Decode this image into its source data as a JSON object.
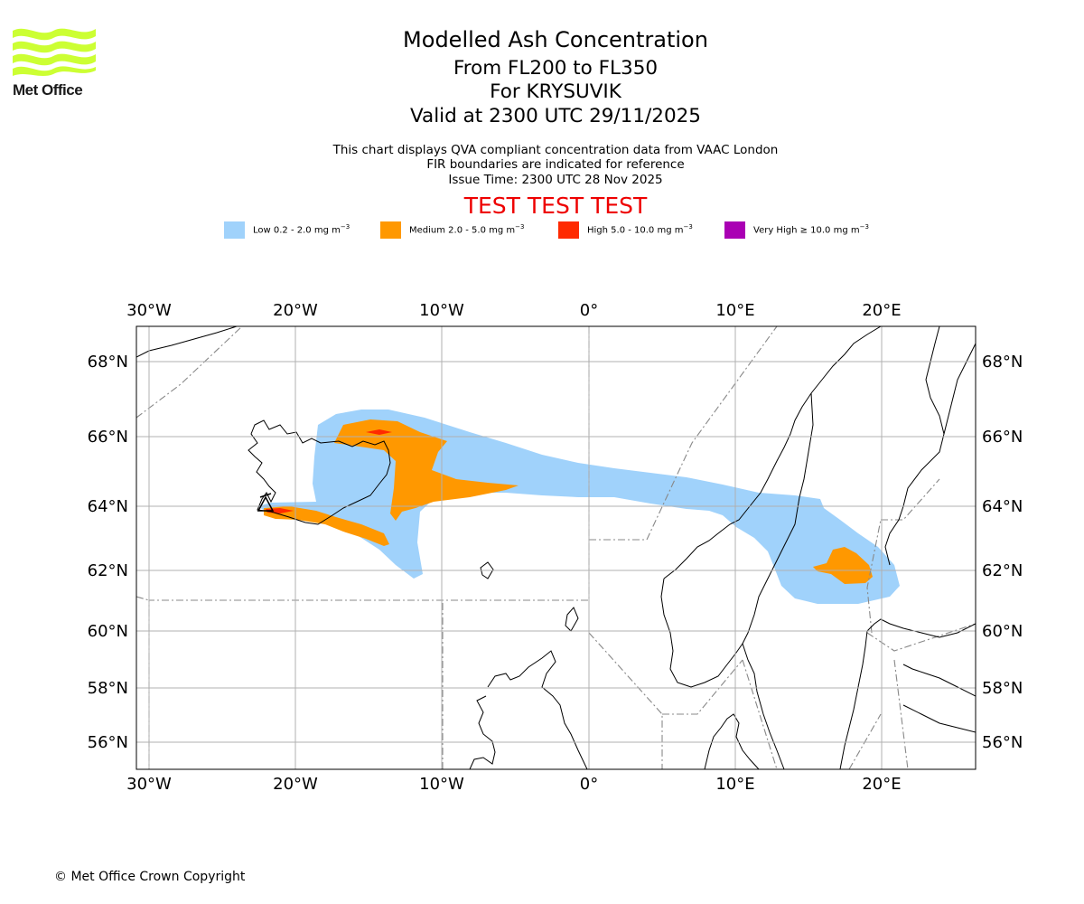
{
  "logo": {
    "text": "Met Office",
    "color": "#ccff33"
  },
  "header": {
    "title": "Modelled Ash Concentration",
    "flight_levels": "From FL200 to FL350",
    "volcano": "For KRYSUVIK",
    "valid": "Valid at 2300 UTC 29/11/2025",
    "note_1": "This chart displays QVA compliant concentration data from VAAC London",
    "note_2": "FIR boundaries are indicated for reference",
    "issue_time": "Issue Time: 2300 UTC 28 Nov 2025",
    "test_banner": "TEST TEST TEST",
    "test_color": "#ee0000"
  },
  "legend": [
    {
      "label": "Low 0.2 - 2.0 mg m",
      "unit_exp": "−3",
      "color": "#a0d2fb"
    },
    {
      "label": "Medium 2.0 - 5.0 mg m",
      "unit_exp": "−3",
      "color": "#ff9800"
    },
    {
      "label": "High 5.0 - 10.0 mg m",
      "unit_exp": "−3",
      "color": "#ff2a00"
    },
    {
      "label": "Very High  ≥  10.0 mg m",
      "unit_exp": "−3",
      "color": "#aa00b4"
    }
  ],
  "map": {
    "lon_labels": [
      "30°W",
      "20°W",
      "10°W",
      "0°",
      "10°E",
      "20°E"
    ],
    "lat_labels": [
      "68°N",
      "66°N",
      "64°N",
      "62°N",
      "60°N",
      "58°N",
      "56°N"
    ],
    "lon_values": [
      -30,
      -20,
      -10,
      0,
      10,
      20
    ],
    "lat_values": [
      68,
      66,
      64,
      62,
      60,
      58,
      56
    ]
  },
  "footer": {
    "copyright": "© Met Office Crown Copyright"
  }
}
